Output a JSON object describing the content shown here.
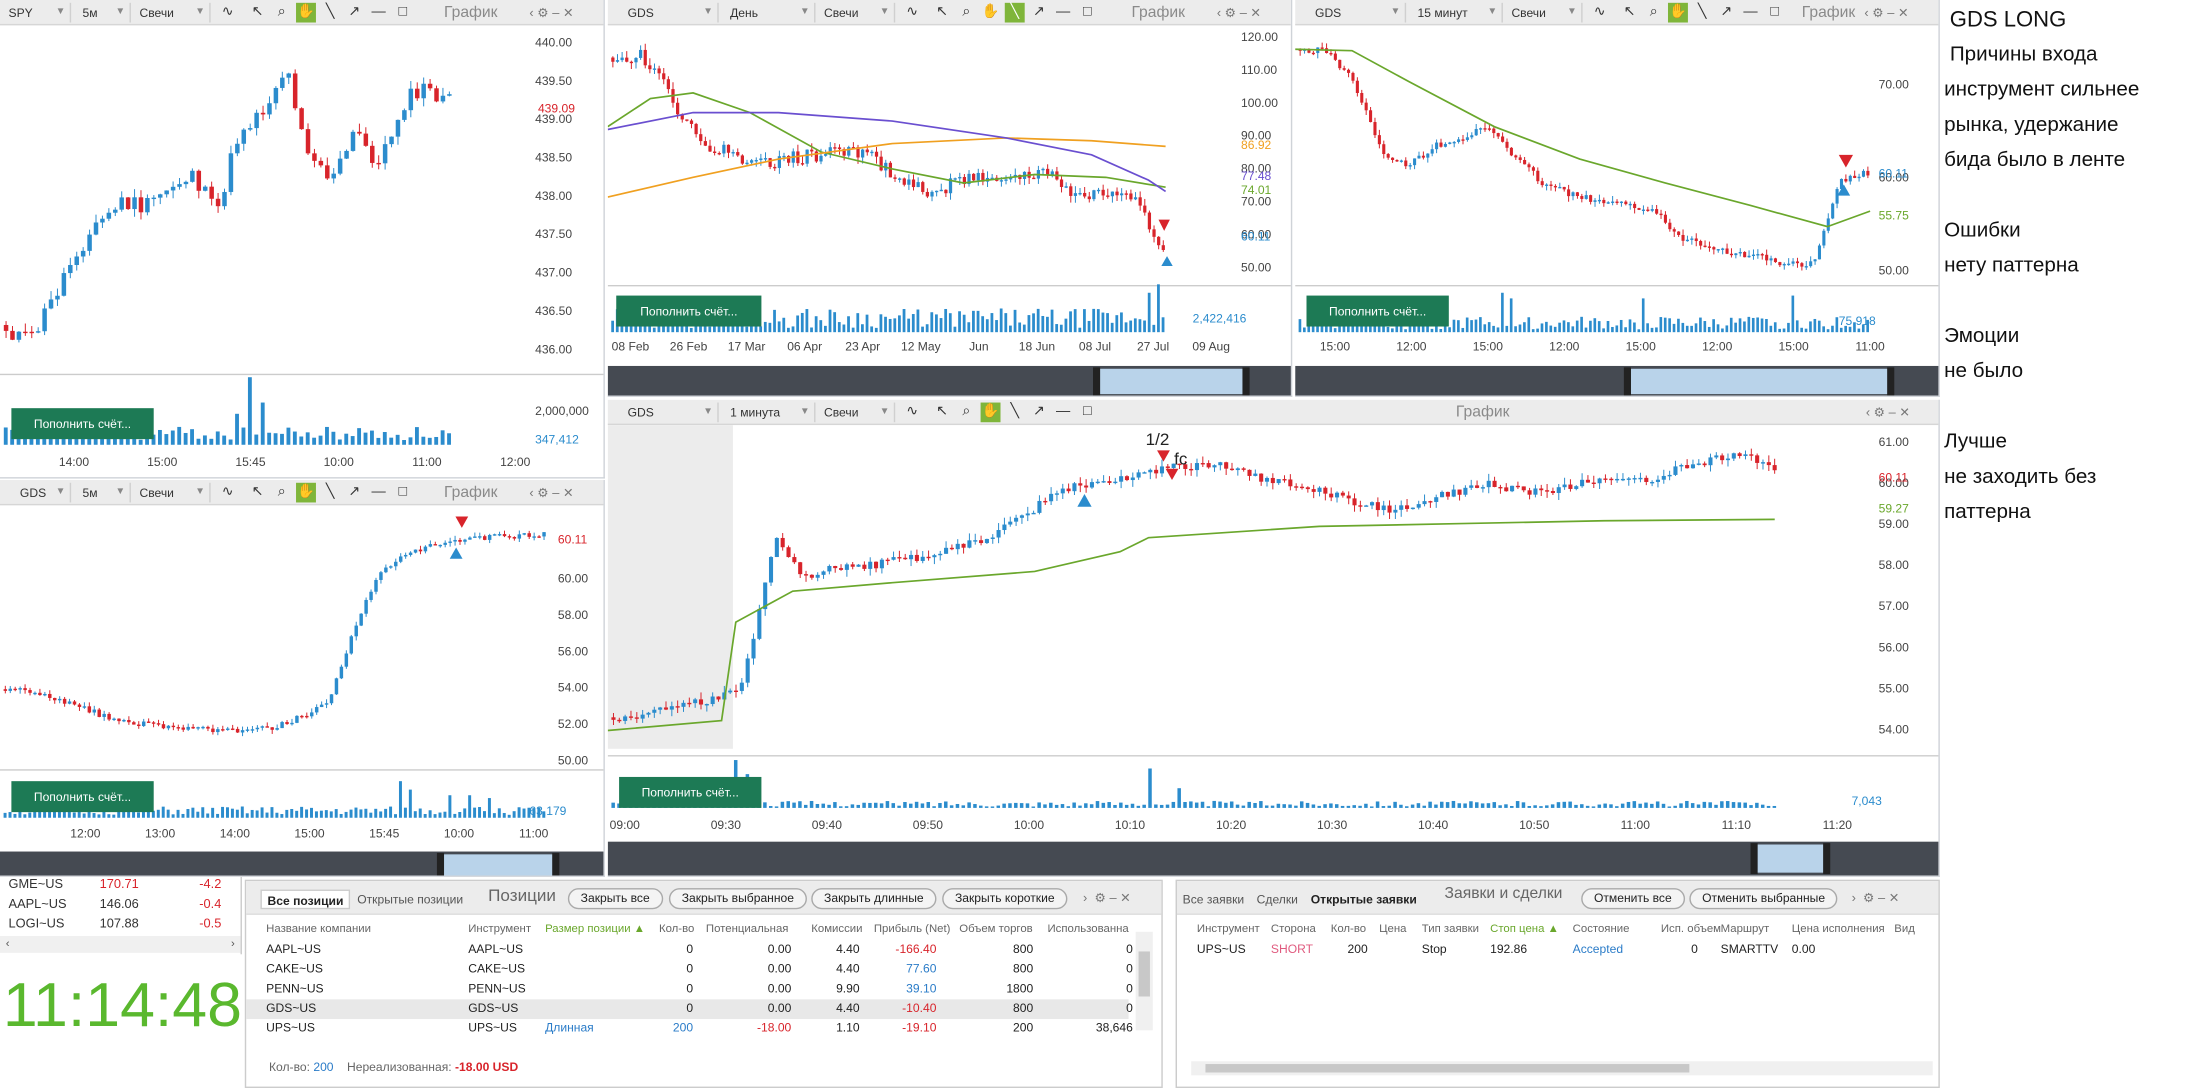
{
  "toolbar_common": {
    "title": "График",
    "type": "Свечи",
    "deposit": "Пополнить счёт..."
  },
  "panels": {
    "spy": {
      "symbol": "SPY",
      "interval": "5м",
      "type": "Свечи",
      "title": "График",
      "y_ticks": [
        "440.00",
        "439.50",
        "439.00",
        "438.50",
        "438.00",
        "437.50",
        "437.00",
        "436.50",
        "436.00"
      ],
      "last_price": "439.09",
      "vol_ticks": [
        "2,000,000"
      ],
      "last_vol": "347,412",
      "x_ticks": [
        "14:00",
        "15:00",
        "15:45",
        "10:00",
        "11:00",
        "12:00"
      ]
    },
    "gds_day": {
      "symbol": "GDS",
      "interval": "День",
      "type": "Свечи",
      "title": "График",
      "y_ticks": [
        "120.00",
        "110.00",
        "100.00",
        "90.00",
        "80.00",
        "70.00",
        "60.00",
        "50.00"
      ],
      "ma_labels": [
        "86.92",
        "77.48",
        "74.01",
        "60.11"
      ],
      "last_vol": "2,422,416",
      "x_ticks": [
        "08 Feb",
        "26 Feb",
        "17 Mar",
        "06 Apr",
        "23 Apr",
        "12 May",
        "Jun",
        "18 Jun",
        "08 Jul",
        "27 Jul",
        "09 Aug"
      ]
    },
    "gds_15": {
      "symbol": "GDS",
      "interval": "15 минут",
      "type": "Свечи",
      "title": "График",
      "y_ticks": [
        "70.00",
        "60.00",
        "50.00"
      ],
      "ma_label": "55.75",
      "last_price": "60.11",
      "last_vol": "75,918",
      "x_ticks": [
        "15:00",
        "12:00",
        "15:00",
        "12:00",
        "15:00",
        "12:00",
        "15:00",
        "11:00"
      ]
    },
    "gds_5": {
      "symbol": "GDS",
      "interval": "5м",
      "type": "Свечи",
      "title": "График",
      "y_ticks": [
        "60.00",
        "58.00",
        "56.00",
        "54.00",
        "52.00",
        "50.00"
      ],
      "last_price": "60.11",
      "last_vol": "63,179",
      "x_ticks": [
        "12:00",
        "13:00",
        "14:00",
        "15:00",
        "15:45",
        "10:00",
        "11:00"
      ]
    },
    "gds_1": {
      "symbol": "GDS",
      "interval": "1 минута",
      "type": "Свечи",
      "title": "График",
      "y_ticks": [
        "61.00",
        "60.00",
        "59.00",
        "58.00",
        "57.00",
        "56.00",
        "55.00",
        "54.00"
      ],
      "last_price": "60.11",
      "ma_label": "59.27",
      "last_vol": "7,043",
      "annotations": [
        "1/2",
        "fc"
      ],
      "x_ticks": [
        "09:00",
        "09:30",
        "09:40",
        "09:50",
        "10:00",
        "10:10",
        "10:20",
        "10:30",
        "10:40",
        "10:50",
        "11:00",
        "11:10",
        "11:20"
      ]
    }
  },
  "watchlist": [
    {
      "sym": "GME~US",
      "price": "170.71",
      "chg": "-4.2"
    },
    {
      "sym": "AAPL~US",
      "price": "146.06",
      "chg": "-0.4"
    },
    {
      "sym": "LOGI~US",
      "price": "107.88",
      "chg": "-0.5"
    }
  ],
  "clock": "11:14:48",
  "positions": {
    "tabs": [
      "Все позиции",
      "Открытые позиции"
    ],
    "title": "Позиции",
    "buttons": [
      "Закрыть все",
      "Закрыть выбранное",
      "Закрыть длинные",
      "Закрыть короткие"
    ],
    "columns": [
      "Название компании",
      "Инструмент",
      "Размер позиции",
      "Кол-во",
      "Потенциальная",
      "Комиссии",
      "Прибыль (Net)",
      "Объем торгов",
      "Использованна"
    ],
    "rows": [
      [
        "AAPL~US",
        "AAPL~US",
        "",
        "0",
        "0.00",
        "4.40",
        "-166.40",
        "800",
        "0"
      ],
      [
        "CAKE~US",
        "CAKE~US",
        "",
        "0",
        "0.00",
        "4.40",
        "77.60",
        "800",
        "0"
      ],
      [
        "PENN~US",
        "PENN~US",
        "",
        "0",
        "0.00",
        "9.90",
        "39.10",
        "1800",
        "0"
      ],
      [
        "GDS~US",
        "GDS~US",
        "",
        "0",
        "0.00",
        "4.40",
        "-10.40",
        "800",
        "0"
      ],
      [
        "UPS~US",
        "UPS~US",
        "Длинная",
        "200",
        "-18.00",
        "1.10",
        "-19.10",
        "200",
        "38,646"
      ]
    ],
    "footer_qty_label": "Кол-во:",
    "footer_qty": "200",
    "footer_unreal_label": "Нереализованная:",
    "footer_unreal": "-18.00 USD"
  },
  "orders": {
    "tabs": [
      "Все заявки",
      "Сделки",
      "Открытые заявки"
    ],
    "title": "Заявки и сделки",
    "buttons": [
      "Отменить все",
      "Отменить выбранные"
    ],
    "columns": [
      "Инструмент",
      "Сторона",
      "Кол-во",
      "Цена",
      "Тип заявки",
      "Стоп цена",
      "Состояние",
      "Исп. объем",
      "Маршрут",
      "Цена исполнения",
      "Вид"
    ],
    "row": [
      "UPS~US",
      "SHORT",
      "200",
      "",
      "Stop",
      "192.86",
      "Accepted",
      "0",
      "SMARTTV",
      "0.00",
      ""
    ]
  },
  "notes": {
    "title": "GDS LONG",
    "lines": [
      " Причины входа",
      "инструмент сильнее",
      "рынка, удержание",
      "бида было в ленте",
      "",
      "Ошибки",
      "нету паттерна",
      "",
      "Эмоции",
      "не было",
      "",
      "Лучше",
      "не заходить без",
      "паттерна"
    ]
  },
  "colors": {
    "up": "#2b8ccd",
    "down": "#d8242b",
    "ma_green": "#6aa72c",
    "ma_orange": "#f0a020",
    "ma_purple": "#6a4fd0",
    "button": "#1d7a55",
    "clock": "#5ab82e"
  }
}
